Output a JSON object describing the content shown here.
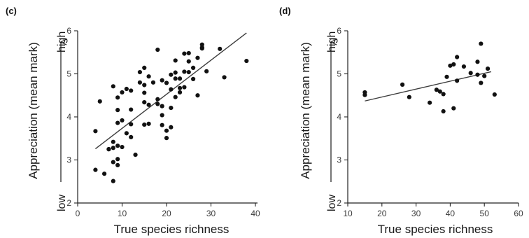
{
  "chart_data": [
    {
      "type": "scatter",
      "panel_label": "(c)",
      "xlabel": "True species richness",
      "ylabel": "Appreciation (mean mark)",
      "ylabel_low": "low",
      "ylabel_high": "high",
      "xlim": [
        0,
        40
      ],
      "ylim": [
        2,
        6
      ],
      "x_ticks": [
        0,
        10,
        20,
        30,
        40
      ],
      "y_ticks": [
        2,
        3,
        4,
        5,
        6
      ],
      "grid": false,
      "regression": {
        "x": [
          4,
          38
        ],
        "y": [
          3.26,
          5.95
        ]
      },
      "points": {
        "x": [
          4,
          4,
          5,
          6,
          7,
          7,
          8,
          8,
          8,
          8,
          8,
          9,
          9,
          9,
          9,
          9,
          9,
          10,
          10,
          10,
          11,
          11,
          12,
          12,
          12,
          12,
          13,
          14,
          14,
          15,
          15,
          15,
          15,
          15,
          16,
          16,
          16,
          17,
          18,
          18,
          18,
          19,
          19,
          19,
          19,
          20,
          20,
          20,
          21,
          21,
          21,
          21,
          22,
          22,
          22,
          22,
          23,
          23,
          23,
          24,
          24,
          24,
          25,
          25,
          25,
          26,
          26,
          27,
          27,
          28,
          28,
          28,
          29,
          32,
          33,
          38
        ],
        "y": [
          3.67,
          2.77,
          4.36,
          2.68,
          3.25,
          3.25,
          2.51,
          2.95,
          3.42,
          3.28,
          4.71,
          2.88,
          3.02,
          3.33,
          3.86,
          4.16,
          4.45,
          3.3,
          3.92,
          4.57,
          4.65,
          3.62,
          3.53,
          4.17,
          3.83,
          4.61,
          3.12,
          4.8,
          5.04,
          3.82,
          4.34,
          4.56,
          4.74,
          5.14,
          4.28,
          3.84,
          4.94,
          4.8,
          4.41,
          4.3,
          5.56,
          4.25,
          3.81,
          4.85,
          4.04,
          3.51,
          3.68,
          4.79,
          4.98,
          4.64,
          4.21,
          3.76,
          4.89,
          5.03,
          5.31,
          4.46,
          4.67,
          4.57,
          4.89,
          5.47,
          5.05,
          4.69,
          5.48,
          5.29,
          5.04,
          4.88,
          5.14,
          5.37,
          4.5,
          5.61,
          5.68,
          5.59,
          5.06,
          5.58,
          4.92,
          5.3
        ]
      }
    },
    {
      "type": "scatter",
      "panel_label": "(d)",
      "xlabel": "True species richness",
      "ylabel": "Appreciation (mean mark)",
      "ylabel_low": "low",
      "ylabel_high": "high",
      "xlim": [
        10,
        60
      ],
      "ylim": [
        2,
        6
      ],
      "x_ticks": [
        10,
        20,
        30,
        40,
        50,
        60
      ],
      "y_ticks": [
        2,
        3,
        4,
        5,
        6
      ],
      "grid": false,
      "regression": {
        "x": [
          15,
          52
        ],
        "y": [
          4.37,
          5.05
        ]
      },
      "points": {
        "x": [
          15,
          15,
          26,
          28,
          34,
          36,
          37,
          38,
          38,
          39,
          40,
          41,
          41,
          42,
          42,
          44,
          46,
          48,
          48,
          49,
          49,
          50,
          51,
          53
        ],
        "y": [
          4.57,
          4.51,
          4.75,
          4.46,
          4.33,
          4.63,
          4.59,
          4.13,
          4.53,
          4.93,
          5.19,
          4.2,
          5.22,
          4.84,
          5.39,
          5.17,
          5.02,
          5.28,
          4.98,
          5.7,
          4.79,
          4.95,
          5.12,
          4.52
        ]
      }
    }
  ]
}
